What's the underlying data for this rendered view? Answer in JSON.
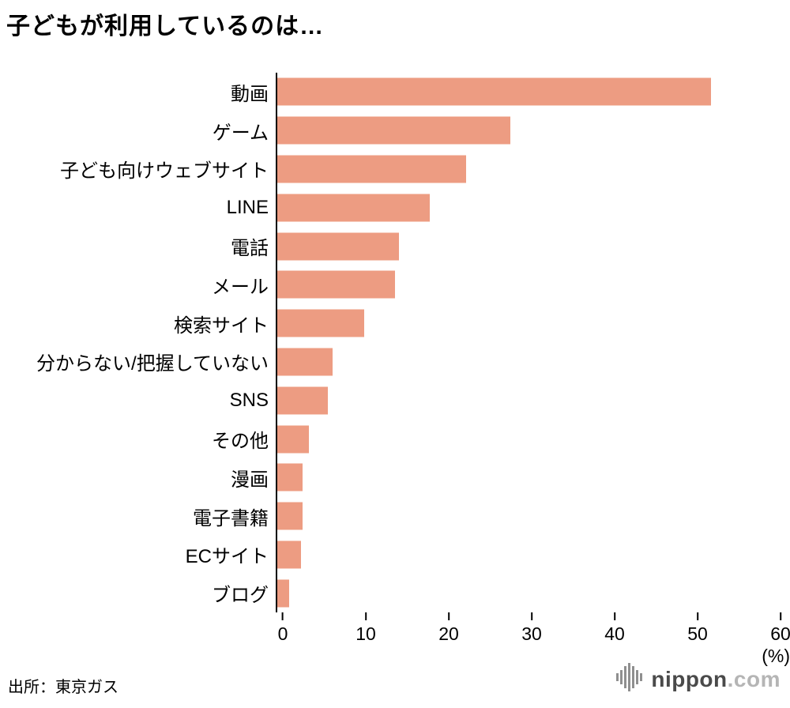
{
  "title": "子どもが利用しているのは…",
  "source": "出所：東京ガス",
  "footer_logo": {
    "name": "nippon",
    "tld": ".com"
  },
  "chart_data": {
    "type": "bar",
    "orientation": "horizontal",
    "title": "子どもが利用しているのは…",
    "categories": [
      "動画",
      "ゲーム",
      "子ども向けウェブサイト",
      "LINE",
      "電話",
      "メール",
      "検索サイト",
      "分からない/把握していない",
      "SNS",
      "その他",
      "漫画",
      "電子書籍",
      "ECサイト",
      "ブログ"
    ],
    "values": [
      51.7,
      27.8,
      22.5,
      18.2,
      14.5,
      14.0,
      10.4,
      6.6,
      6.0,
      3.8,
      3.0,
      3.0,
      2.8,
      1.4
    ],
    "xlabel": "(%)",
    "ylabel": "",
    "xlim": [
      0,
      60
    ],
    "xticks": [
      0,
      10,
      20,
      30,
      40,
      50,
      60
    ],
    "grid": false,
    "legend": false,
    "bar_color": "#ED9C82"
  }
}
